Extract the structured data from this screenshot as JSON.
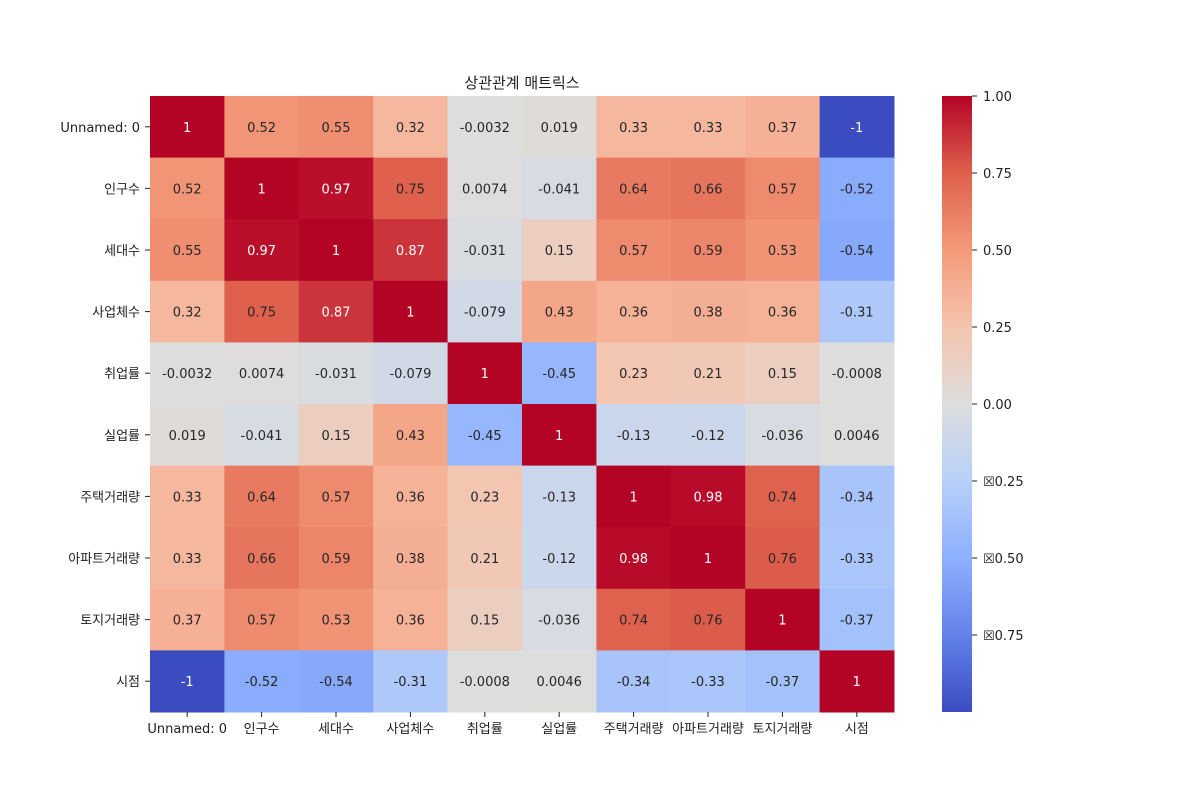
{
  "chart_data": {
    "type": "heatmap",
    "title": "상관관계 매트릭스",
    "row_labels": [
      "Unnamed: 0",
      "인구수",
      "세대수",
      "사업체수",
      "취업률",
      "실업률",
      "주택거래량",
      "아파트거래량",
      "토지거래량",
      "시점"
    ],
    "col_labels": [
      "Unnamed: 0",
      "인구수",
      "세대수",
      "사업체수",
      "취업률",
      "실업률",
      "주택거래량",
      "아파트거래량",
      "토지거래량",
      "시점"
    ],
    "values": [
      [
        1,
        0.52,
        0.55,
        0.32,
        -0.0032,
        0.019,
        0.33,
        0.33,
        0.37,
        -1
      ],
      [
        0.52,
        1,
        0.97,
        0.75,
        0.0074,
        -0.041,
        0.64,
        0.66,
        0.57,
        -0.52
      ],
      [
        0.55,
        0.97,
        1,
        0.87,
        -0.031,
        0.15,
        0.57,
        0.59,
        0.53,
        -0.54
      ],
      [
        0.32,
        0.75,
        0.87,
        1,
        -0.079,
        0.43,
        0.36,
        0.38,
        0.36,
        -0.31
      ],
      [
        -0.0032,
        0.0074,
        -0.031,
        -0.079,
        1,
        -0.45,
        0.23,
        0.21,
        0.15,
        -0.0008
      ],
      [
        0.019,
        -0.041,
        0.15,
        0.43,
        -0.45,
        1,
        -0.13,
        -0.12,
        -0.036,
        0.0046
      ],
      [
        0.33,
        0.64,
        0.57,
        0.36,
        0.23,
        -0.13,
        1,
        0.98,
        0.74,
        -0.34
      ],
      [
        0.33,
        0.66,
        0.59,
        0.38,
        0.21,
        -0.12,
        0.98,
        1,
        0.76,
        -0.33
      ],
      [
        0.37,
        0.57,
        0.53,
        0.36,
        0.15,
        -0.036,
        0.74,
        0.76,
        1,
        -0.37
      ],
      [
        -1,
        -0.52,
        -0.54,
        -0.31,
        -0.0008,
        0.0046,
        -0.34,
        -0.33,
        -0.37,
        1
      ]
    ],
    "annotations": [
      [
        "1",
        "0.52",
        "0.55",
        "0.32",
        "-0.0032",
        "0.019",
        "0.33",
        "0.33",
        "0.37",
        "-1"
      ],
      [
        "0.52",
        "1",
        "0.97",
        "0.75",
        "0.0074",
        "-0.041",
        "0.64",
        "0.66",
        "0.57",
        "-0.52"
      ],
      [
        "0.55",
        "0.97",
        "1",
        "0.87",
        "-0.031",
        "0.15",
        "0.57",
        "0.59",
        "0.53",
        "-0.54"
      ],
      [
        "0.32",
        "0.75",
        "0.87",
        "1",
        "-0.079",
        "0.43",
        "0.36",
        "0.38",
        "0.36",
        "-0.31"
      ],
      [
        "-0.0032",
        "0.0074",
        "-0.031",
        "-0.079",
        "1",
        "-0.45",
        "0.23",
        "0.21",
        "0.15",
        "-0.0008"
      ],
      [
        "0.019",
        "-0.041",
        "0.15",
        "0.43",
        "-0.45",
        "1",
        "-0.13",
        "-0.12",
        "-0.036",
        "0.0046"
      ],
      [
        "0.33",
        "0.64",
        "0.57",
        "0.36",
        "0.23",
        "-0.13",
        "1",
        "0.98",
        "0.74",
        "-0.34"
      ],
      [
        "0.33",
        "0.66",
        "0.59",
        "0.38",
        "0.21",
        "-0.12",
        "0.98",
        "1",
        "0.76",
        "-0.33"
      ],
      [
        "0.37",
        "0.57",
        "0.53",
        "0.36",
        "0.15",
        "-0.036",
        "0.74",
        "0.76",
        "1",
        "-0.37"
      ],
      [
        "-1",
        "-0.52",
        "-0.54",
        "-0.31",
        "-0.0008",
        "0.0046",
        "-0.34",
        "-0.33",
        "-0.37",
        "1"
      ]
    ],
    "colormap": "coolwarm",
    "vmin": -1,
    "vmax": 1,
    "colorbar": {
      "ticks": [
        1.0,
        0.75,
        0.5,
        0.25,
        0.0,
        -0.25,
        -0.5,
        -0.75
      ],
      "tick_labels": [
        "1.00",
        "0.75",
        "0.50",
        "0.25",
        "0.00",
        "☒0.25",
        "☒0.50",
        "☒0.75"
      ]
    }
  }
}
